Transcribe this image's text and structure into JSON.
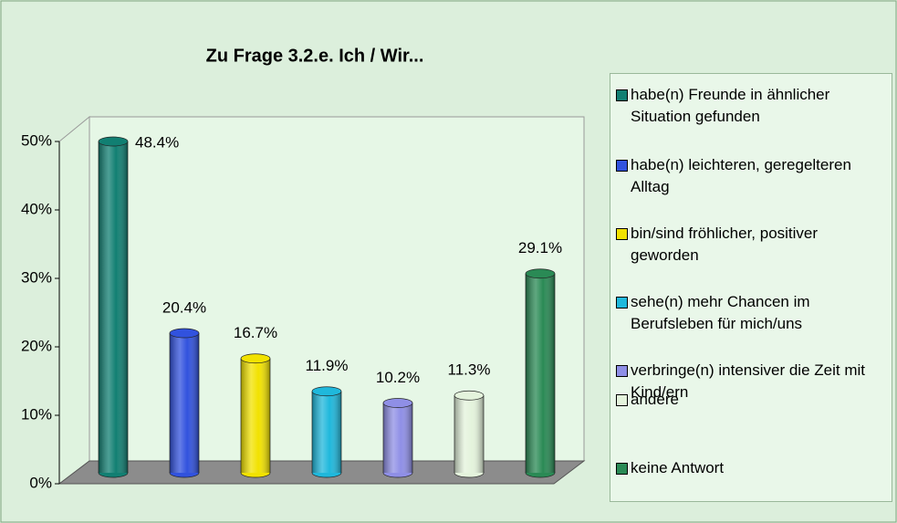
{
  "chart_data": {
    "type": "bar3d",
    "title": "Zu Frage 3.2.e. Ich / Wir...",
    "ylim": [
      0,
      50
    ],
    "yticks": [
      {
        "value": 0,
        "label": "0%"
      },
      {
        "value": 10,
        "label": "10%"
      },
      {
        "value": 20,
        "label": "20%"
      },
      {
        "value": 30,
        "label": "30%"
      },
      {
        "value": 40,
        "label": "40%"
      },
      {
        "value": 50,
        "label": "50%"
      }
    ],
    "grid": false,
    "legend": "right",
    "series": [
      {
        "name": "habe(n) Freunde in ähnlicher Situation gefunden",
        "color": "#117f72",
        "values": [
          48.4
        ],
        "value_labels": [
          "48.4%"
        ]
      },
      {
        "name": "habe(n) leichteren, geregelteren Alltag",
        "color": "#3152de",
        "values": [
          20.4
        ],
        "value_labels": [
          "20.4%"
        ]
      },
      {
        "name": "bin/sind fröhlicher, positiver geworden",
        "color": "#f2e200",
        "values": [
          16.7
        ],
        "value_labels": [
          "16.7%"
        ]
      },
      {
        "name": "sehe(n) mehr Chancen im Berufsleben für mich/uns",
        "color": "#1fb8dc",
        "values": [
          11.9
        ],
        "value_labels": [
          "11.9%"
        ]
      },
      {
        "name": "verbringe(n) intensiver die Zeit mit Kind/ern",
        "color": "#8f8fe6",
        "values": [
          10.2
        ],
        "value_labels": [
          "10.2%"
        ]
      },
      {
        "name": "andere",
        "color": "#e4f3dc",
        "values": [
          11.3
        ],
        "value_labels": [
          "11.3%"
        ]
      },
      {
        "name": "keine Antwort",
        "color": "#2a8a55",
        "values": [
          29.1
        ],
        "value_labels": [
          "29.1%"
        ]
      }
    ]
  }
}
